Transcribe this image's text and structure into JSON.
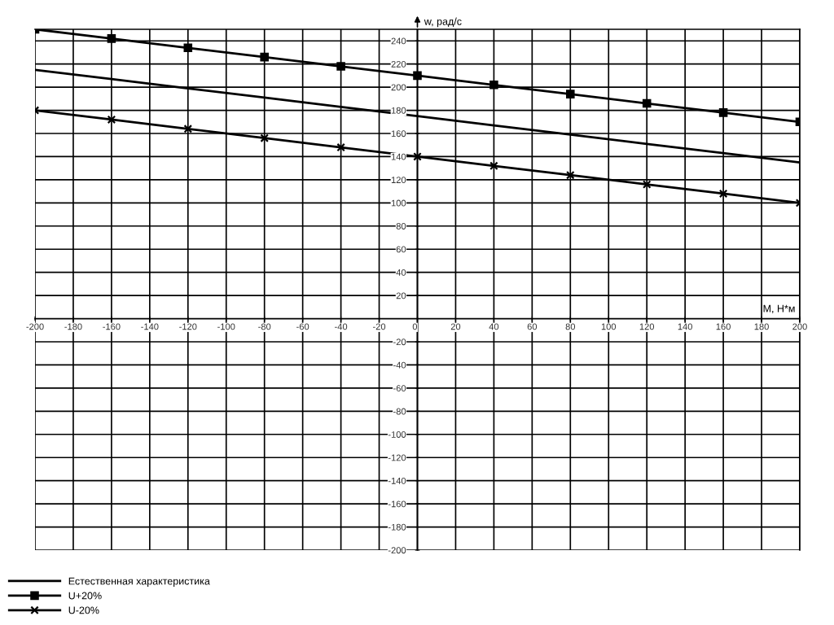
{
  "chart_data": {
    "type": "line",
    "xlabel": "M, Н*м",
    "ylabel": "w, рад/с",
    "x": [
      -200,
      -160,
      -120,
      -80,
      -40,
      0,
      40,
      80,
      120,
      160,
      200
    ],
    "series": [
      {
        "name": "Естественная характеристика",
        "color": "#000000",
        "marker": "none",
        "values": [
          215,
          207,
          199,
          191,
          183,
          175,
          167,
          159,
          151,
          143,
          135
        ]
      },
      {
        "name": "U+20%",
        "color": "#000000",
        "marker": "square",
        "values": [
          250,
          242,
          234,
          226,
          218,
          210,
          202,
          194,
          186,
          178,
          170
        ]
      },
      {
        "name": "U-20%",
        "color": "#000000",
        "marker": "cross",
        "values": [
          180,
          172,
          164,
          156,
          148,
          140,
          132,
          124,
          116,
          108,
          100
        ]
      }
    ],
    "xlim": [
      -200,
      200
    ],
    "ylim": [
      -200,
      250
    ],
    "xticks": [
      -200,
      -180,
      -160,
      -140,
      -120,
      -100,
      -80,
      -60,
      -40,
      -20,
      0,
      20,
      40,
      60,
      80,
      100,
      120,
      140,
      160,
      180,
      200
    ],
    "yticks": [
      -200,
      -180,
      -160,
      -140,
      -120,
      -100,
      -80,
      -60,
      -40,
      -20,
      20,
      40,
      60,
      80,
      100,
      120,
      140,
      160,
      180,
      200,
      220,
      240
    ],
    "grid": true,
    "legend": "bottom left",
    "line_style": "solid"
  }
}
